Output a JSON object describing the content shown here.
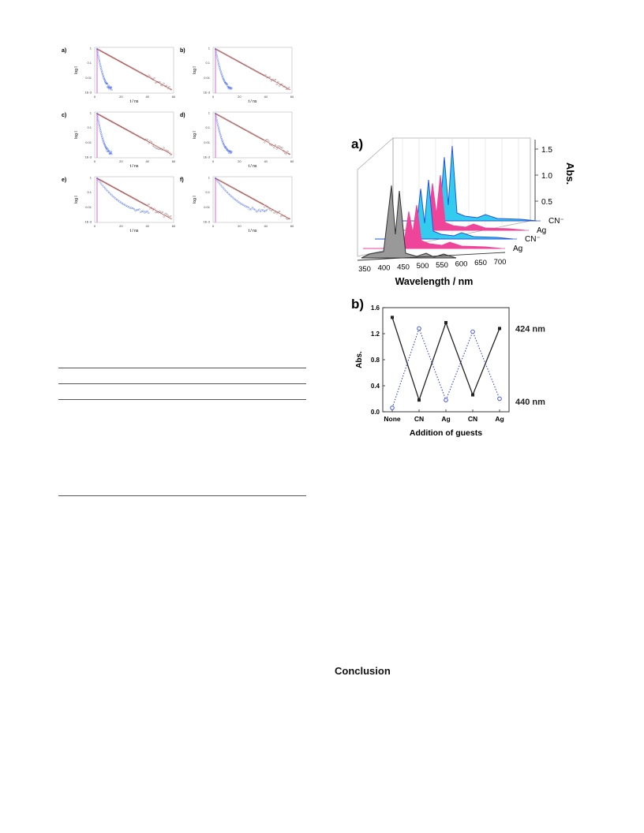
{
  "decay_panels": {
    "labels": [
      "a)",
      "b)",
      "c)",
      "d)",
      "e)",
      "f)"
    ],
    "y_label": "log I",
    "x_label": "t / ns",
    "y_ticks": [
      "1",
      "0.1",
      "0.01",
      "1E-3"
    ],
    "x_ticks": [
      "0",
      "20",
      "40",
      "60"
    ],
    "colors": {
      "slow": "#777777",
      "fit": "#cc2222",
      "fast": "#4466ee",
      "irf": "#cc44cc"
    }
  },
  "fig_a": {
    "label": "a)",
    "xlabel": "Wavelength / nm",
    "x_ticks": [
      "350",
      "400",
      "450",
      "500",
      "550",
      "600",
      "650",
      "700"
    ],
    "ylabel": "Abs.",
    "y_ticks": [
      "0.5",
      "1.0",
      "1.5"
    ],
    "series": [
      {
        "name": "CN⁻",
        "color": "#ee3388"
      },
      {
        "name": "Ag",
        "color": "#3355ee"
      },
      {
        "name": "CN⁻",
        "color": "#22ccee"
      },
      {
        "name": "Ag",
        "color": "#2255dd"
      }
    ],
    "colors": {
      "front": "#999999",
      "pink": "#ee4499",
      "cyan": "#33ccee",
      "blue": "#2255dd"
    }
  },
  "fig_b": {
    "label": "b)",
    "chart_data": {
      "type": "line",
      "categories": [
        "None",
        "CN",
        "Ag",
        "CN",
        "Ag"
      ],
      "series": [
        {
          "name": "424 nm",
          "values": [
            1.45,
            0.18,
            1.37,
            0.26,
            1.28
          ],
          "color": "#222222",
          "style": "solid-filled-square"
        },
        {
          "name": "440 nm",
          "values": [
            0.06,
            1.28,
            0.18,
            1.23,
            0.2
          ],
          "color": "#3344dd",
          "style": "dotted-open-circle"
        }
      ],
      "xlabel": "Addition of guests",
      "ylabel": "Abs.",
      "ylim": [
        0,
        1.6
      ],
      "y_ticks": [
        "0.0",
        "0.4",
        "0.8",
        "1.2",
        "1.6"
      ]
    }
  },
  "section": {
    "heading": "Conclusion"
  }
}
